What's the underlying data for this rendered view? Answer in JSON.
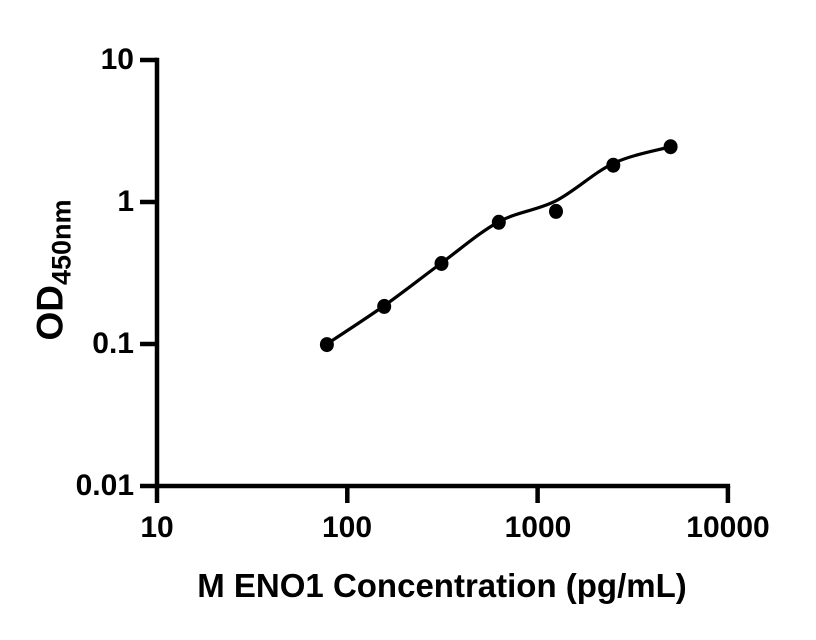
{
  "page": {
    "background": "#ffffff",
    "ink_color": "#000000"
  },
  "chart_data": {
    "type": "scatter",
    "title": "",
    "xlabel": "M ENO1 Concentration (pg/mL)",
    "ylabel_main": "OD",
    "ylabel_sub": "450nm",
    "x_scale": "log10",
    "y_scale": "log10",
    "xlim": [
      10,
      10000
    ],
    "ylim": [
      0.01,
      10
    ],
    "x_ticks": [
      10,
      100,
      1000,
      10000
    ],
    "x_tick_labels": [
      "10",
      "100",
      "1000",
      "10000"
    ],
    "y_ticks": [
      10,
      1,
      0.1,
      0.01
    ],
    "y_tick_labels": [
      "10",
      "1",
      "0.1",
      "0.01"
    ],
    "grid": false,
    "legend": "none",
    "marker_color": "#000000",
    "line_color": "#000000",
    "series": [
      {
        "name": "standard-points",
        "type": "scatter",
        "marker": "filled-circle",
        "x": [
          78.1,
          156.3,
          312.5,
          625,
          1250,
          2500,
          5000
        ],
        "y": [
          0.099,
          0.184,
          0.369,
          0.719,
          0.859,
          1.815,
          2.45
        ]
      },
      {
        "name": "fit-curve",
        "type": "line",
        "x": [
          78.1,
          156.3,
          312.5,
          625,
          1250,
          2500,
          5000
        ],
        "y": [
          0.1,
          0.186,
          0.372,
          0.725,
          1.02,
          1.87,
          2.45
        ]
      }
    ]
  }
}
